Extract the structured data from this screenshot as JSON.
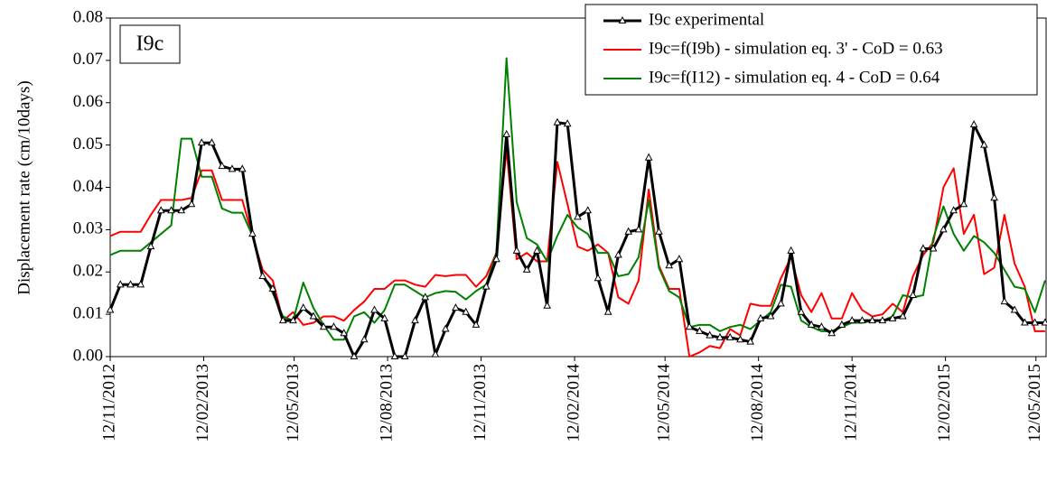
{
  "chart_data": {
    "type": "line",
    "annotation": "I9c",
    "y_label": "Displacement rate (cm/10days)",
    "x": [
      "12/11/2012",
      "22/11/2012",
      "02/12/2012",
      "12/12/2012",
      "22/12/2012",
      "01/01/2013",
      "11/01/2013",
      "21/01/2013",
      "31/01/2013",
      "10/02/2013",
      "20/02/2013",
      "02/03/2013",
      "12/03/2013",
      "22/03/2013",
      "01/04/2013",
      "11/04/2013",
      "21/04/2013",
      "01/05/2013",
      "11/05/2013",
      "21/05/2013",
      "31/05/2013",
      "10/06/2013",
      "20/06/2013",
      "30/06/2013",
      "10/07/2013",
      "20/07/2013",
      "30/07/2013",
      "09/08/2013",
      "19/08/2013",
      "29/08/2013",
      "08/09/2013",
      "18/09/2013",
      "28/09/2013",
      "08/10/2013",
      "18/10/2013",
      "28/10/2013",
      "07/11/2013",
      "17/11/2013",
      "27/11/2013",
      "07/12/2013",
      "17/12/2013",
      "27/12/2013",
      "06/01/2014",
      "16/01/2014",
      "26/01/2014",
      "05/02/2014",
      "15/02/2014",
      "25/02/2014",
      "07/03/2014",
      "17/03/2014",
      "27/03/2014",
      "06/04/2014",
      "16/04/2014",
      "26/04/2014",
      "06/05/2014",
      "16/05/2014",
      "26/05/2014",
      "05/06/2014",
      "15/06/2014",
      "25/06/2014",
      "05/07/2014",
      "15/07/2014",
      "25/07/2014",
      "04/08/2014",
      "14/08/2014",
      "24/08/2014",
      "03/09/2014",
      "13/09/2014",
      "23/09/2014",
      "03/10/2014",
      "13/10/2014",
      "23/10/2014",
      "02/11/2014",
      "12/11/2014",
      "22/11/2014",
      "02/12/2014",
      "12/12/2014",
      "22/12/2014",
      "01/01/2015",
      "11/01/2015",
      "21/01/2015",
      "31/01/2015",
      "10/02/2015",
      "20/02/2015",
      "02/03/2015",
      "12/03/2015",
      "22/03/2015",
      "01/04/2015",
      "11/04/2015",
      "21/04/2015",
      "01/05/2015",
      "11/05/2015",
      "21/05/2015"
    ],
    "series": [
      {
        "name": "I9c experimental",
        "color": "#000000",
        "marker": "triangle",
        "values": [
          0.011,
          0.017,
          0.017,
          0.017,
          0.026,
          0.0345,
          0.0345,
          0.0345,
          0.036,
          0.0505,
          0.0505,
          0.045,
          0.0443,
          0.0443,
          0.029,
          0.019,
          0.016,
          0.0085,
          0.0085,
          0.0115,
          0.0095,
          0.007,
          0.007,
          0.0055,
          0.0,
          0.004,
          0.011,
          0.009,
          0.0,
          0.0,
          0.0085,
          0.014,
          0.0005,
          0.0065,
          0.0115,
          0.0105,
          0.0075,
          0.0165,
          0.023,
          0.0525,
          0.025,
          0.0205,
          0.025,
          0.012,
          0.0553,
          0.055,
          0.033,
          0.0345,
          0.0185,
          0.0105,
          0.024,
          0.0295,
          0.03,
          0.047,
          0.0295,
          0.0215,
          0.023,
          0.007,
          0.006,
          0.005,
          0.0045,
          0.0045,
          0.004,
          0.0035,
          0.009,
          0.0095,
          0.0125,
          0.025,
          0.0105,
          0.0075,
          0.007,
          0.0055,
          0.0075,
          0.0085,
          0.0085,
          0.0085,
          0.0085,
          0.009,
          0.0095,
          0.0145,
          0.0255,
          0.0255,
          0.03,
          0.0345,
          0.036,
          0.0548,
          0.05,
          0.0375,
          0.013,
          0.011,
          0.008,
          0.008,
          0.008
        ]
      },
      {
        "name": "I9c=f(I9b) - simulation eq. 3' - CoD = 0.63",
        "color": "#ff0000",
        "values": [
          0.0285,
          0.0295,
          0.0295,
          0.0295,
          0.0335,
          0.037,
          0.037,
          0.037,
          0.0375,
          0.044,
          0.044,
          0.037,
          0.037,
          0.037,
          0.0285,
          0.0205,
          0.018,
          0.0085,
          0.0105,
          0.0075,
          0.008,
          0.0095,
          0.0095,
          0.0085,
          0.011,
          0.013,
          0.016,
          0.016,
          0.018,
          0.018,
          0.017,
          0.0165,
          0.0193,
          0.019,
          0.0193,
          0.0193,
          0.0165,
          0.019,
          0.0245,
          0.049,
          0.023,
          0.0245,
          0.0225,
          0.0225,
          0.046,
          0.036,
          0.026,
          0.025,
          0.0265,
          0.0245,
          0.014,
          0.0125,
          0.018,
          0.0395,
          0.0215,
          0.016,
          0.016,
          0.0,
          0.001,
          0.0025,
          0.002,
          0.0065,
          0.005,
          0.0125,
          0.012,
          0.012,
          0.0185,
          0.0235,
          0.0145,
          0.0105,
          0.015,
          0.009,
          0.009,
          0.015,
          0.011,
          0.0095,
          0.01,
          0.0125,
          0.0105,
          0.019,
          0.024,
          0.027,
          0.04,
          0.0445,
          0.029,
          0.0335,
          0.0195,
          0.021,
          0.0335,
          0.022,
          0.0165,
          0.006,
          0.006
        ]
      },
      {
        "name": "I9c=f(I12) - simulation eq. 4 - CoD = 0.64",
        "color": "#008000",
        "values": [
          0.024,
          0.025,
          0.025,
          0.025,
          0.027,
          0.029,
          0.031,
          0.0515,
          0.0515,
          0.0425,
          0.0425,
          0.035,
          0.034,
          0.034,
          0.0285,
          0.0195,
          0.015,
          0.0095,
          0.0085,
          0.0175,
          0.0115,
          0.0075,
          0.004,
          0.004,
          0.0095,
          0.0105,
          0.008,
          0.011,
          0.017,
          0.017,
          0.0155,
          0.014,
          0.015,
          0.0155,
          0.0153,
          0.0135,
          0.0155,
          0.017,
          0.0245,
          0.0705,
          0.0365,
          0.028,
          0.0265,
          0.0225,
          0.0285,
          0.0335,
          0.0305,
          0.029,
          0.0245,
          0.0245,
          0.019,
          0.0195,
          0.0235,
          0.037,
          0.021,
          0.0155,
          0.014,
          0.007,
          0.0075,
          0.0075,
          0.006,
          0.007,
          0.0075,
          0.0065,
          0.0085,
          0.0105,
          0.017,
          0.0165,
          0.0085,
          0.007,
          0.006,
          0.006,
          0.007,
          0.008,
          0.008,
          0.0085,
          0.0085,
          0.0095,
          0.0145,
          0.014,
          0.0145,
          0.028,
          0.0355,
          0.029,
          0.025,
          0.0285,
          0.027,
          0.0245,
          0.0205,
          0.0165,
          0.016,
          0.0105,
          0.018
        ]
      }
    ],
    "xlim": [
      "12/11/2012",
      "22/05/2015"
    ],
    "xticks": [
      "12/11/2012",
      "12/02/2013",
      "12/05/2013",
      "12/08/2013",
      "12/11/2013",
      "12/02/2014",
      "12/05/2014",
      "12/08/2014",
      "12/11/2014",
      "12/02/2015",
      "12/05/2015"
    ],
    "ylim": [
      0,
      0.08
    ],
    "yticks": [
      {
        "value": 0,
        "label": "0.00"
      },
      {
        "value": 0.01,
        "label": "0.01"
      },
      {
        "value": 0.02,
        "label": "0.02"
      },
      {
        "value": 0.03,
        "label": "0.03"
      },
      {
        "value": 0.04,
        "label": "0.04"
      },
      {
        "value": 0.05,
        "label": "0.05"
      },
      {
        "value": 0.06,
        "label": "0.06"
      },
      {
        "value": 0.07,
        "label": "0.07"
      },
      {
        "value": 0.08,
        "label": "0.08"
      }
    ],
    "grid": false,
    "legend": "upper right"
  }
}
